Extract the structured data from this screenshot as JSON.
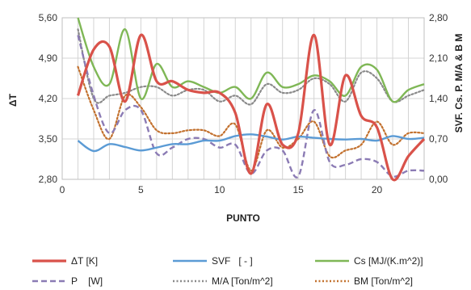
{
  "chart_data": {
    "type": "line",
    "title": "",
    "xlabel": "PUNTO",
    "ylabel_left": "ΔT",
    "ylabel_right": "SVF. Cs. P. M/A & B M",
    "xlim": [
      0,
      23
    ],
    "ylim_left": [
      2.8,
      5.6
    ],
    "ylim_right": [
      0,
      2.8
    ],
    "x_ticks": [
      "0",
      "5",
      "10",
      "15",
      "20"
    ],
    "y_left_ticks": [
      "2,80",
      "3,50",
      "4,20",
      "4,90",
      "5,60"
    ],
    "y_right_ticks": [
      "0,00",
      "0,70",
      "1,40",
      "2,10",
      "2,80"
    ],
    "grid": true,
    "legend_position": "bottom",
    "x": [
      1,
      2,
      3,
      4,
      5,
      6,
      7,
      8,
      9,
      10,
      11,
      12,
      13,
      14,
      15,
      16,
      17,
      18,
      19,
      20,
      21,
      22,
      23
    ],
    "series": [
      {
        "name": "ΔT [K]",
        "axis": "left",
        "style": "solid",
        "color": "#d9524a",
        "values": [
          4.25,
          5.05,
          5.1,
          4.15,
          5.3,
          4.5,
          4.5,
          4.35,
          4.3,
          4.3,
          3.95,
          2.9,
          4.1,
          3.4,
          3.6,
          5.3,
          3.4,
          4.6,
          3.9,
          3.7,
          2.8,
          3.2,
          3.5
        ]
      },
      {
        "name": "SVF   [ - ]",
        "axis": "right",
        "style": "solid",
        "color": "#5b9bd5",
        "values": [
          0.67,
          0.49,
          0.61,
          0.56,
          0.5,
          0.55,
          0.61,
          0.61,
          0.67,
          0.67,
          0.75,
          0.78,
          0.74,
          0.69,
          0.74,
          0.72,
          0.7,
          0.69,
          0.7,
          0.67,
          0.75,
          0.7,
          0.72
        ]
      },
      {
        "name": "Cs [MJ/(K.m^2)]",
        "axis": "right",
        "style": "solid",
        "color": "#7fb756",
        "values": [
          2.8,
          1.95,
          1.65,
          2.6,
          1.4,
          2.0,
          1.6,
          1.7,
          1.6,
          1.5,
          1.6,
          1.4,
          1.85,
          1.6,
          1.65,
          1.8,
          1.7,
          1.45,
          1.95,
          1.9,
          1.35,
          1.55,
          1.65
        ]
      },
      {
        "name": "P    [W]",
        "axis": "right",
        "style": "dashed",
        "color": "#8b7bb4",
        "values": [
          2.5,
          1.45,
          0.8,
          1.2,
          1.2,
          0.45,
          0.55,
          0.7,
          0.7,
          0.55,
          0.6,
          0.1,
          0.5,
          0.5,
          0.05,
          1.2,
          0.3,
          0.25,
          0.35,
          0.3,
          0.05,
          0.15,
          0.15
        ]
      },
      {
        "name": "M/A [Ton/m^2]",
        "axis": "right",
        "style": "dotted",
        "color": "#8a8a8a",
        "values": [
          2.6,
          1.4,
          1.45,
          1.5,
          1.6,
          1.6,
          1.45,
          1.55,
          1.55,
          1.35,
          1.45,
          1.3,
          1.65,
          1.5,
          1.55,
          1.75,
          1.65,
          1.35,
          1.85,
          1.75,
          1.35,
          1.45,
          1.55
        ]
      },
      {
        "name": "BM [Ton/m^2]",
        "axis": "right",
        "style": "dotted",
        "color": "#c2702d",
        "values": [
          1.95,
          1.2,
          0.7,
          1.45,
          1.25,
          0.85,
          0.8,
          0.85,
          0.85,
          0.75,
          0.95,
          0.15,
          0.85,
          0.55,
          0.7,
          1.0,
          0.4,
          0.5,
          0.6,
          1.0,
          0.6,
          0.8,
          0.8
        ]
      }
    ]
  }
}
